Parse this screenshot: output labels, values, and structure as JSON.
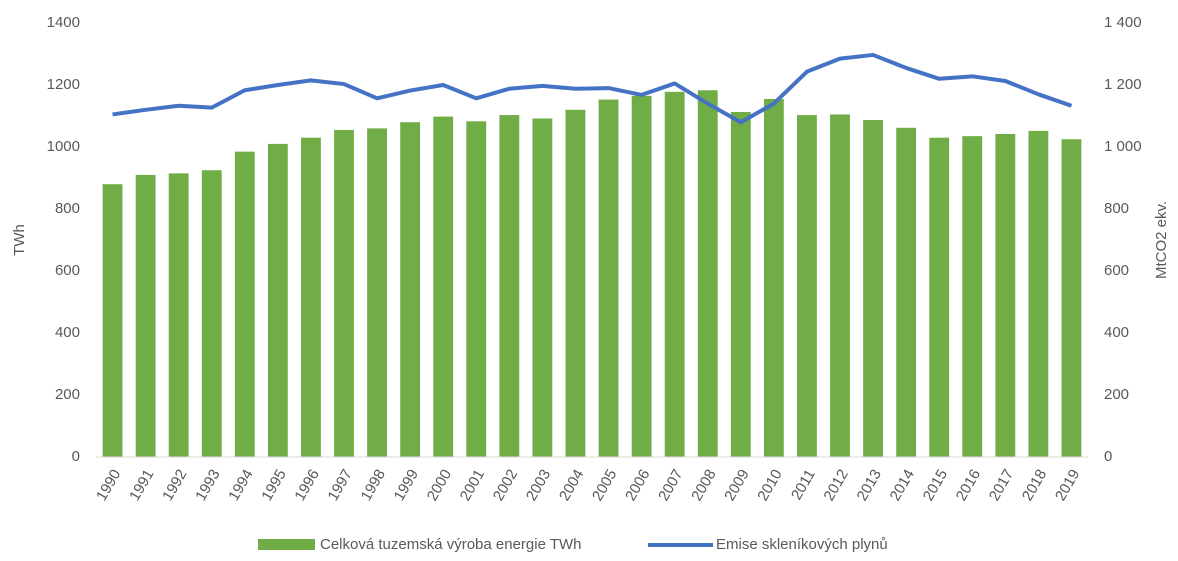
{
  "chart_data": {
    "type": "combo",
    "categories": [
      "1990",
      "1991",
      "1992",
      "1993",
      "1994",
      "1995",
      "1996",
      "1997",
      "1998",
      "1999",
      "2000",
      "2001",
      "2002",
      "2003",
      "2004",
      "2005",
      "2006",
      "2007",
      "2008",
      "2009",
      "2010",
      "2011",
      "2012",
      "2013",
      "2014",
      "2015",
      "2016",
      "2017",
      "2018",
      "2019"
    ],
    "y_label": "TWh",
    "y2_label": "MtCO2 ekv.",
    "ylim": [
      0,
      1400
    ],
    "yticks": [
      0,
      200,
      400,
      600,
      800,
      1000,
      1200,
      1400
    ],
    "y2lim": [
      0,
      1400
    ],
    "y2ticks": [
      0,
      200,
      400,
      600,
      800,
      {
        "value": 1000,
        "label": "1 000"
      },
      {
        "value": 1200,
        "label": "1 200"
      },
      {
        "value": 1400,
        "label": "1 400"
      }
    ],
    "grid": false,
    "legend": "bottom",
    "series": [
      {
        "name": "Celková tuzemská výroba energie TWh",
        "type": "bar",
        "color": "#70ad47",
        "values": [
          880,
          910,
          915,
          925,
          985,
          1010,
          1030,
          1055,
          1060,
          1080,
          1098,
          1083,
          1103,
          1092,
          1120,
          1153,
          1165,
          1178,
          1183,
          1113,
          1155,
          1103,
          1105,
          1087,
          1062,
          1030,
          1035,
          1042,
          1052,
          1025
        ]
      },
      {
        "name": "Emise skleníkových plynů",
        "type": "line",
        "axis": "y2",
        "color": "#4472c4",
        "values": [
          1105,
          1120,
          1133,
          1127,
          1183,
          1200,
          1215,
          1203,
          1157,
          1182,
          1200,
          1157,
          1188,
          1197,
          1188,
          1190,
          1168,
          1205,
          1140,
          1080,
          1140,
          1243,
          1285,
          1297,
          1255,
          1220,
          1228,
          1213,
          1170,
          1133
        ]
      }
    ]
  }
}
